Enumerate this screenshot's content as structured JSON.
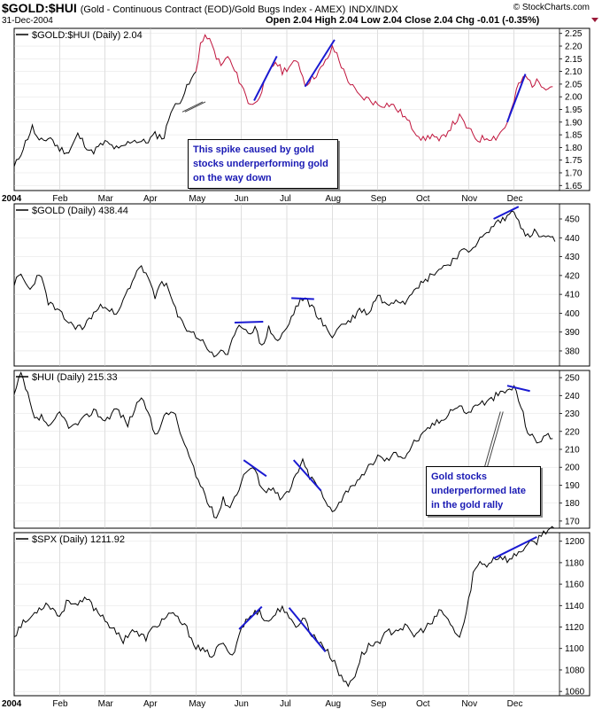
{
  "header": {
    "symbol": "$GOLD:$HUI",
    "name": "(Gold - Continuous Contract (EOD)/Gold Bugs Index - AMEX)",
    "exchange": "INDX/INDX",
    "date": "31-Dec-2004",
    "ohlc": "Open 2.04  High 2.04  Low 2.04  Close 2.04  Chg -0.01 (-0.35%)",
    "brand": "© StockCharts.com"
  },
  "colors": {
    "line": "#000000",
    "ratio_up": "#c0143c",
    "trend": "#1a1ad2",
    "note_text": "#1a1ab4"
  },
  "months": [
    "2004",
    "Feb",
    "Mar",
    "Apr",
    "May",
    "Jun",
    "Jul",
    "Aug",
    "Sep",
    "Oct",
    "Nov",
    "Dec"
  ],
  "annotations": [
    {
      "text": "This spike caused by gold stocks underperforming gold on the way down"
    },
    {
      "text": "Gold stocks underperformed late in the gold rally"
    }
  ],
  "chart_data": [
    {
      "type": "line",
      "title": "$GOLD:$HUI (Daily) 2.04",
      "ylim": [
        1.63,
        2.27
      ],
      "ticks": [
        1.65,
        1.7,
        1.75,
        1.8,
        1.85,
        1.9,
        1.95,
        2.0,
        2.05,
        2.1,
        2.15,
        2.2,
        2.25
      ],
      "tick_labels": [
        "1.65",
        "1.70",
        "1.75",
        "1.80",
        "1.85",
        "1.90",
        "1.95",
        "2.00",
        "2.05",
        "2.10",
        "2.15",
        "2.20",
        "2.25"
      ],
      "anchors": [
        [
          0,
          1.72
        ],
        [
          0.15,
          1.78
        ],
        [
          0.4,
          1.88
        ],
        [
          0.55,
          1.82
        ],
        [
          0.8,
          1.84
        ],
        [
          0.95,
          1.8
        ],
        [
          1.2,
          1.78
        ],
        [
          1.4,
          1.85
        ],
        [
          1.7,
          1.78
        ],
        [
          2.0,
          1.82
        ],
        [
          2.3,
          1.79
        ],
        [
          2.6,
          1.83
        ],
        [
          2.9,
          1.82
        ],
        [
          3.1,
          1.85
        ],
        [
          3.3,
          1.84
        ],
        [
          3.45,
          1.95
        ],
        [
          3.6,
          1.97
        ],
        [
          3.75,
          2.02
        ],
        [
          3.85,
          2.05
        ],
        [
          4.0,
          2.1
        ],
        [
          4.1,
          2.21
        ],
        [
          4.25,
          2.24
        ],
        [
          4.4,
          2.18
        ],
        [
          4.55,
          2.12
        ],
        [
          4.7,
          2.16
        ],
        [
          4.85,
          2.1
        ],
        [
          5.0,
          2.05
        ],
        [
          5.15,
          1.98
        ],
        [
          5.3,
          1.97
        ],
        [
          5.45,
          2.03
        ],
        [
          5.6,
          2.09
        ],
        [
          5.75,
          2.14
        ],
        [
          5.9,
          2.1
        ],
        [
          6.05,
          2.12
        ],
        [
          6.25,
          2.14
        ],
        [
          6.4,
          2.05
        ],
        [
          6.6,
          2.08
        ],
        [
          6.8,
          2.12
        ],
        [
          7.0,
          2.19
        ],
        [
          7.1,
          2.17
        ],
        [
          7.25,
          2.1
        ],
        [
          7.4,
          2.05
        ],
        [
          7.6,
          2.0
        ],
        [
          7.8,
          1.99
        ],
        [
          8.0,
          1.97
        ],
        [
          8.3,
          1.97
        ],
        [
          8.55,
          1.93
        ],
        [
          8.8,
          1.87
        ],
        [
          9.0,
          1.83
        ],
        [
          9.2,
          1.85
        ],
        [
          9.35,
          1.82
        ],
        [
          9.6,
          1.88
        ],
        [
          9.8,
          1.92
        ],
        [
          10.0,
          1.87
        ],
        [
          10.2,
          1.83
        ],
        [
          10.4,
          1.84
        ],
        [
          10.6,
          1.84
        ],
        [
          10.8,
          1.88
        ],
        [
          10.95,
          1.95
        ],
        [
          11.1,
          2.05
        ],
        [
          11.25,
          2.08
        ],
        [
          11.4,
          2.05
        ],
        [
          11.55,
          2.06
        ],
        [
          11.7,
          2.04
        ],
        [
          11.85,
          2.04
        ]
      ],
      "up_color_from": 4.0,
      "trendlines": [
        [
          [
            5.28,
            1.985
          ],
          [
            5.78,
            2.16
          ]
        ],
        [
          [
            6.4,
            2.04
          ],
          [
            7.05,
            2.225
          ]
        ],
        [
          [
            10.85,
            1.9
          ],
          [
            11.25,
            2.09
          ]
        ]
      ],
      "arrow": [
        [
          4.15,
          1.98
        ],
        [
          3.7,
          1.94
        ]
      ]
    },
    {
      "type": "line",
      "title": "$GOLD (Daily) 438.44",
      "ylim": [
        372,
        458
      ],
      "ticks": [
        380,
        390,
        400,
        410,
        420,
        430,
        440,
        450
      ],
      "tick_labels": [
        "380",
        "390",
        "400",
        "410",
        "420",
        "430",
        "440",
        "450"
      ],
      "anchors": [
        [
          0,
          416
        ],
        [
          0.15,
          420
        ],
        [
          0.35,
          412
        ],
        [
          0.55,
          422
        ],
        [
          0.75,
          406
        ],
        [
          1.0,
          400
        ],
        [
          1.25,
          394
        ],
        [
          1.5,
          392
        ],
        [
          1.75,
          400
        ],
        [
          2.0,
          405
        ],
        [
          2.25,
          398
        ],
        [
          2.5,
          412
        ],
        [
          2.75,
          425
        ],
        [
          2.9,
          421
        ],
        [
          3.1,
          408
        ],
        [
          3.25,
          418
        ],
        [
          3.4,
          412
        ],
        [
          3.6,
          398
        ],
        [
          3.8,
          392
        ],
        [
          4.0,
          388
        ],
        [
          4.2,
          384
        ],
        [
          4.4,
          376
        ],
        [
          4.55,
          381
        ],
        [
          4.7,
          378
        ],
        [
          4.85,
          388
        ],
        [
          5.0,
          394
        ],
        [
          5.15,
          390
        ],
        [
          5.3,
          392
        ],
        [
          5.45,
          382
        ],
        [
          5.6,
          392
        ],
        [
          5.8,
          385
        ],
        [
          6.0,
          392
        ],
        [
          6.2,
          403
        ],
        [
          6.35,
          408
        ],
        [
          6.55,
          404
        ],
        [
          6.7,
          398
        ],
        [
          6.85,
          392
        ],
        [
          7.0,
          388
        ],
        [
          7.2,
          394
        ],
        [
          7.4,
          396
        ],
        [
          7.6,
          402
        ],
        [
          7.8,
          400
        ],
        [
          8.0,
          410
        ],
        [
          8.2,
          404
        ],
        [
          8.4,
          408
        ],
        [
          8.6,
          406
        ],
        [
          8.8,
          414
        ],
        [
          9.0,
          416
        ],
        [
          9.2,
          421
        ],
        [
          9.4,
          424
        ],
        [
          9.6,
          427
        ],
        [
          9.8,
          432
        ],
        [
          10.0,
          433
        ],
        [
          10.2,
          438
        ],
        [
          10.4,
          442
        ],
        [
          10.6,
          448
        ],
        [
          10.8,
          450
        ],
        [
          11.0,
          455
        ],
        [
          11.1,
          450
        ],
        [
          11.25,
          440
        ],
        [
          11.45,
          443
        ],
        [
          11.6,
          440
        ],
        [
          11.75,
          441
        ],
        [
          11.9,
          438
        ]
      ],
      "trendlines": [
        [
          [
            4.85,
            395
          ],
          [
            5.48,
            395.5
          ]
        ],
        [
          [
            6.1,
            408
          ],
          [
            6.6,
            407.5
          ]
        ],
        [
          [
            10.55,
            450
          ],
          [
            11.1,
            456.5
          ]
        ]
      ]
    },
    {
      "type": "line",
      "title": "$HUI (Daily) 215.33",
      "ylim": [
        166,
        254
      ],
      "ticks": [
        170,
        180,
        190,
        200,
        210,
        220,
        230,
        240,
        250
      ],
      "tick_labels": [
        "170",
        "180",
        "190",
        "200",
        "210",
        "220",
        "230",
        "240",
        "250"
      ],
      "anchors": [
        [
          0,
          240
        ],
        [
          0.15,
          252
        ],
        [
          0.3,
          240
        ],
        [
          0.45,
          226
        ],
        [
          0.6,
          228
        ],
        [
          0.8,
          222
        ],
        [
          1.0,
          230
        ],
        [
          1.25,
          222
        ],
        [
          1.5,
          226
        ],
        [
          1.75,
          232
        ],
        [
          2.0,
          226
        ],
        [
          2.25,
          233
        ],
        [
          2.5,
          224
        ],
        [
          2.75,
          238
        ],
        [
          2.9,
          234
        ],
        [
          3.1,
          218
        ],
        [
          3.3,
          228
        ],
        [
          3.5,
          232
        ],
        [
          3.7,
          216
        ],
        [
          3.85,
          206
        ],
        [
          4.0,
          195
        ],
        [
          4.15,
          188
        ],
        [
          4.3,
          178
        ],
        [
          4.45,
          172
        ],
        [
          4.6,
          182
        ],
        [
          4.75,
          178
        ],
        [
          4.9,
          186
        ],
        [
          5.1,
          198
        ],
        [
          5.25,
          200
        ],
        [
          5.4,
          192
        ],
        [
          5.55,
          186
        ],
        [
          5.7,
          190
        ],
        [
          5.85,
          182
        ],
        [
          6.05,
          186
        ],
        [
          6.2,
          196
        ],
        [
          6.35,
          203
        ],
        [
          6.5,
          195
        ],
        [
          6.7,
          189
        ],
        [
          6.85,
          180
        ],
        [
          7.0,
          176
        ],
        [
          7.2,
          182
        ],
        [
          7.4,
          190
        ],
        [
          7.6,
          192
        ],
        [
          7.8,
          200
        ],
        [
          8.0,
          206
        ],
        [
          8.2,
          204
        ],
        [
          8.4,
          208
        ],
        [
          8.6,
          206
        ],
        [
          8.8,
          214
        ],
        [
          9.0,
          218
        ],
        [
          9.2,
          224
        ],
        [
          9.4,
          226
        ],
        [
          9.6,
          232
        ],
        [
          9.8,
          234
        ],
        [
          10.0,
          230
        ],
        [
          10.2,
          236
        ],
        [
          10.4,
          236
        ],
        [
          10.6,
          240
        ],
        [
          10.8,
          242
        ],
        [
          11.0,
          245
        ],
        [
          11.15,
          234
        ],
        [
          11.3,
          220
        ],
        [
          11.5,
          214
        ],
        [
          11.7,
          218
        ],
        [
          11.85,
          216
        ]
      ],
      "trendlines": [
        [
          [
            5.05,
            204
          ],
          [
            5.55,
            195
          ]
        ],
        [
          [
            6.15,
            204
          ],
          [
            6.75,
            187
          ]
        ],
        [
          [
            10.85,
            245.5
          ],
          [
            11.35,
            242.5
          ]
        ]
      ],
      "arrow": [
        [
          10.7,
          231
        ],
        [
          10.35,
          200
        ]
      ]
    },
    {
      "type": "line",
      "title": "$SPX (Daily) 1211.92",
      "ylim": [
        1056,
        1208
      ],
      "ticks": [
        1060,
        1080,
        1100,
        1120,
        1140,
        1160,
        1180,
        1200
      ],
      "tick_labels": [
        "1060",
        "1080",
        "1100",
        "1120",
        "1140",
        "1160",
        "1180",
        "1200"
      ],
      "anchors": [
        [
          0,
          1112
        ],
        [
          0.15,
          1122
        ],
        [
          0.35,
          1128
        ],
        [
          0.55,
          1138
        ],
        [
          0.75,
          1142
        ],
        [
          1.0,
          1130
        ],
        [
          1.2,
          1146
        ],
        [
          1.4,
          1140
        ],
        [
          1.6,
          1146
        ],
        [
          1.8,
          1136
        ],
        [
          2.0,
          1128
        ],
        [
          2.2,
          1116
        ],
        [
          2.4,
          1108
        ],
        [
          2.6,
          1118
        ],
        [
          2.75,
          1112
        ],
        [
          2.9,
          1110
        ],
        [
          3.05,
          1118
        ],
        [
          3.2,
          1124
        ],
        [
          3.4,
          1132
        ],
        [
          3.6,
          1128
        ],
        [
          3.8,
          1118
        ],
        [
          4.0,
          1102
        ],
        [
          4.2,
          1096
        ],
        [
          4.4,
          1094
        ],
        [
          4.55,
          1106
        ],
        [
          4.7,
          1096
        ],
        [
          4.85,
          1098
        ],
        [
          5.0,
          1120
        ],
        [
          5.2,
          1130
        ],
        [
          5.4,
          1136
        ],
        [
          5.55,
          1124
        ],
        [
          5.75,
          1132
        ],
        [
          5.9,
          1140
        ],
        [
          6.05,
          1126
        ],
        [
          6.2,
          1122
        ],
        [
          6.4,
          1128
        ],
        [
          6.55,
          1112
        ],
        [
          6.75,
          1106
        ],
        [
          6.9,
          1096
        ],
        [
          7.05,
          1088
        ],
        [
          7.2,
          1072
        ],
        [
          7.35,
          1066
        ],
        [
          7.5,
          1076
        ],
        [
          7.65,
          1094
        ],
        [
          7.8,
          1102
        ],
        [
          8.0,
          1106
        ],
        [
          8.2,
          1114
        ],
        [
          8.4,
          1118
        ],
        [
          8.6,
          1120
        ],
        [
          8.8,
          1112
        ],
        [
          9.0,
          1118
        ],
        [
          9.2,
          1124
        ],
        [
          9.4,
          1136
        ],
        [
          9.6,
          1122
        ],
        [
          9.8,
          1110
        ],
        [
          9.95,
          1132
        ],
        [
          10.1,
          1170
        ],
        [
          10.25,
          1180
        ],
        [
          10.4,
          1178
        ],
        [
          10.55,
          1184
        ],
        [
          10.7,
          1186
        ],
        [
          10.9,
          1182
        ],
        [
          11.1,
          1190
        ],
        [
          11.3,
          1196
        ],
        [
          11.5,
          1200
        ],
        [
          11.6,
          1206
        ],
        [
          11.75,
          1212
        ],
        [
          11.88,
          1212
        ]
      ],
      "trendlines": [
        [
          [
            4.95,
            1118
          ],
          [
            5.45,
            1139
          ]
        ],
        [
          [
            6.05,
            1138
          ],
          [
            6.85,
            1097
          ]
        ],
        [
          [
            10.55,
            1184
          ],
          [
            11.5,
            1204
          ]
        ]
      ]
    }
  ]
}
